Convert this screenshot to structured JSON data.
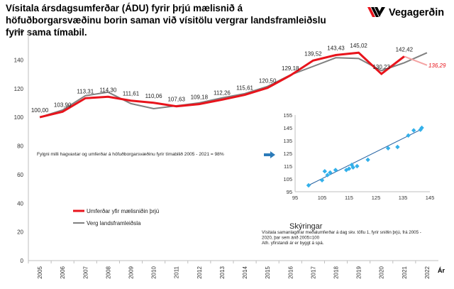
{
  "title": "Vísitala ársdagsumferðar (ÁDU) fyrir þrjú mælisnið á höfuðborgarsvæðinu borin saman við vísitölu vergrar landsframleiðslu fyrir sama tímabil.",
  "brand": {
    "name": "Vegagerðin",
    "logo_icon": "vegagerdin-logo-icon"
  },
  "chart_data": [
    {
      "type": "line",
      "x": [
        "2005",
        "2006",
        "2007",
        "2008",
        "2009",
        "2010",
        "2011",
        "2012",
        "2013",
        "2014",
        "2015",
        "2016",
        "2017",
        "2018",
        "2019",
        "2020",
        "2021",
        "2022"
      ],
      "ylim": [
        0,
        160
      ],
      "yticks": [
        0,
        20,
        40,
        60,
        80,
        100,
        120,
        140,
        160
      ],
      "xlabel": "Ár",
      "grid": false,
      "legend_position": "left",
      "series": [
        {
          "name": "Umferðar yfir mælisniðin þrjú",
          "color": "#e8141c",
          "values": [
            100.0,
            103.9,
            113.31,
            114.3,
            111.61,
            110.06,
            107.63,
            109.18,
            112.26,
            115.61,
            120.5,
            129.18,
            139.52,
            143.43,
            145.02,
            130.23,
            142.42,
            null
          ],
          "labels": [
            "100,00",
            "103,90",
            "113,31",
            "114,30",
            "111,61",
            "110,06",
            "107,63",
            "109,18",
            "112,26",
            "115,61",
            "120,50",
            "129,18",
            "139,52",
            "143,43",
            "145,02",
            "130,23",
            "142,42",
            null
          ]
        },
        {
          "name": "Verg landsframleiðsla",
          "color": "#808080",
          "values": [
            100,
            105,
            115,
            117.5,
            109.5,
            106,
            108,
            110,
            113.5,
            116.5,
            121.5,
            129.5,
            135.5,
            141.5,
            141,
            132.5,
            138,
            145
          ]
        }
      ],
      "forecast": {
        "from": "2021",
        "to": "2022",
        "values": [
          142.42,
          136.29
        ],
        "label": "136,29",
        "color": "#f4a3a3"
      },
      "annotations": {
        "correlation": "Fylgni milli hagvaxtar og umferðar á höfuðborgarsvæðinu fyrir tímabilið 2005 - 2021 = 98%",
        "legend_heading": "Skýringar",
        "explanation": [
          "Vísitala samanlagðrar meðalumferðar á dag  skv. töflu 1, fyrir sniðin  þrjú, frá 2005 -",
          "2020, þar sem árið 2005=100",
          "Ath. yfirstandi ár er byggt á spá."
        ],
        "arrow_icon": "right-arrow-icon"
      }
    },
    {
      "type": "scatter",
      "color": "#33b0ea",
      "xlim": [
        95,
        145
      ],
      "ylim": [
        95,
        155
      ],
      "xticks": [
        95,
        105,
        115,
        125,
        135,
        145
      ],
      "yticks": [
        95,
        105,
        115,
        125,
        135,
        145,
        155
      ],
      "points": [
        [
          100,
          100
        ],
        [
          105,
          104
        ],
        [
          106,
          111
        ],
        [
          107,
          108
        ],
        [
          108,
          110
        ],
        [
          110,
          112
        ],
        [
          114,
          112
        ],
        [
          115,
          113
        ],
        [
          116,
          116
        ],
        [
          116.5,
          114
        ],
        [
          118,
          115
        ],
        [
          122,
          120
        ],
        [
          129.5,
          129
        ],
        [
          133,
          130
        ],
        [
          137,
          139
        ],
        [
          139,
          143
        ],
        [
          142,
          145
        ],
        [
          141.5,
          143.5
        ]
      ],
      "trendline": [
        [
          100,
          100
        ],
        [
          142,
          144
        ]
      ]
    }
  ]
}
